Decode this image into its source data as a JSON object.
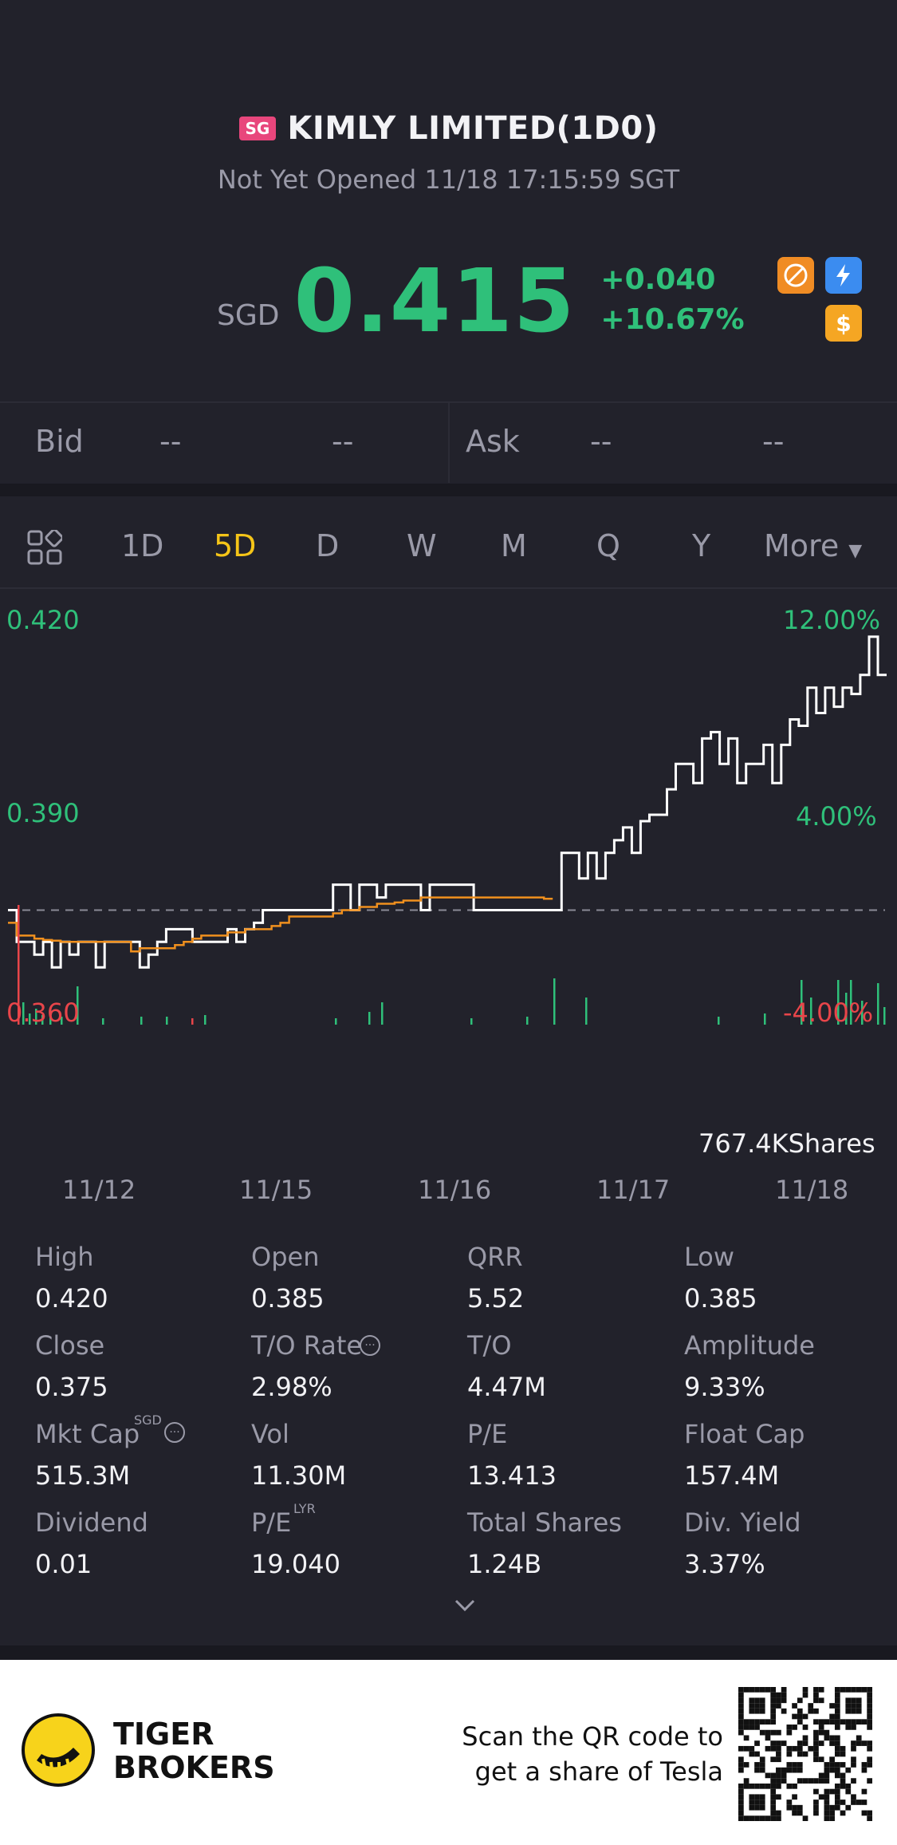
{
  "header": {
    "market_badge": "SG",
    "title": "KIMLY LIMITED(1D0)",
    "status": "Not Yet Opened 11/18 17:15:59 SGT"
  },
  "quote": {
    "currency": "SGD",
    "price": "0.415",
    "change": "+0.040",
    "change_pct": "+10.67%",
    "color_up": "#2fc07a"
  },
  "badges": {
    "no_short": "no-short-icon",
    "flash": "flash-icon",
    "dollar": "$"
  },
  "bidask": {
    "bid_label": "Bid",
    "bid_price": "--",
    "bid_size": "--",
    "ask_label": "Ask",
    "ask_price": "--",
    "ask_size": "--"
  },
  "tabs": {
    "items": [
      "1D",
      "5D",
      "D",
      "W",
      "M",
      "Q",
      "Y",
      "More"
    ],
    "active": "5D"
  },
  "chart_data": {
    "type": "line",
    "y_left": [
      "0.420",
      "0.390",
      "0.360"
    ],
    "y_right": [
      "12.00%",
      "4.00%",
      "-4.00%"
    ],
    "x_labels": [
      "11/12",
      "11/15",
      "11/16",
      "11/17",
      "11/18"
    ],
    "prev_close": 0.375,
    "ylim": [
      0.36,
      0.42
    ],
    "volume_label": "767.4KShares",
    "series": [
      {
        "color": "#ffffff",
        "values": [
          0.375,
          0.37,
          0.37,
          0.368,
          0.37,
          0.366,
          0.37,
          0.368,
          0.37,
          0.37,
          0.366,
          0.37,
          0.37,
          0.37,
          0.37,
          0.366,
          0.368,
          0.37,
          0.372,
          0.372,
          0.372,
          0.37,
          0.37,
          0.37,
          0.37,
          0.372,
          0.37,
          0.372,
          0.373,
          0.375,
          0.375,
          0.375,
          0.375,
          0.375,
          0.375,
          0.375,
          0.375,
          0.379,
          0.379,
          0.375,
          0.379,
          0.379,
          0.377,
          0.379,
          0.379,
          0.379,
          0.379,
          0.375,
          0.379,
          0.379,
          0.379,
          0.379,
          0.379,
          0.375,
          0.375,
          0.375,
          0.375,
          0.375,
          0.375,
          0.375,
          0.375,
          0.375,
          0.375,
          0.384,
          0.384,
          0.38,
          0.384,
          0.38,
          0.384,
          0.386,
          0.388,
          0.384,
          0.389,
          0.39,
          0.39,
          0.394,
          0.398,
          0.398,
          0.395,
          0.402,
          0.403,
          0.398,
          0.402,
          0.395,
          0.398,
          0.398,
          0.401,
          0.395,
          0.401,
          0.405,
          0.404,
          0.41,
          0.406,
          0.41,
          0.407,
          0.41,
          0.409,
          0.412,
          0.418,
          0.412,
          0.412
        ]
      },
      {
        "color": "#f0901e",
        "values": [
          0.373,
          0.371,
          0.371,
          0.3705,
          0.3703,
          0.3702,
          0.37,
          0.37,
          0.37,
          0.37,
          0.37,
          0.37,
          0.37,
          0.37,
          0.3685,
          0.369,
          0.369,
          0.369,
          0.369,
          0.3695,
          0.37,
          0.3705,
          0.371,
          0.371,
          0.371,
          0.3715,
          0.3715,
          0.372,
          0.372,
          0.372,
          0.3725,
          0.373,
          0.374,
          0.374,
          0.374,
          0.374,
          0.374,
          0.3745,
          0.375,
          0.375,
          0.3755,
          0.3755,
          0.376,
          0.376,
          0.3762,
          0.3765,
          0.3765,
          0.377,
          0.377,
          0.377,
          0.377,
          0.377,
          0.377,
          0.377,
          0.377,
          0.377,
          0.377,
          0.377,
          0.377,
          0.377,
          0.377,
          0.3768,
          0.3768,
          null,
          null,
          null,
          null,
          null,
          null,
          null,
          null,
          null,
          null,
          null,
          null,
          null,
          null,
          null,
          null,
          null,
          null,
          null,
          null,
          null,
          null,
          null,
          null,
          null,
          null,
          null,
          null,
          null,
          null,
          null,
          null,
          null,
          null,
          null,
          null,
          null,
          null
        ]
      }
    ]
  },
  "stats": [
    {
      "label": "High",
      "value": "0.420"
    },
    {
      "label": "Open",
      "value": "0.385"
    },
    {
      "label": "QRR",
      "value": "5.52"
    },
    {
      "label": "Low",
      "value": "0.385"
    },
    {
      "label": "Close",
      "value": "0.375"
    },
    {
      "label": "T/O Rate",
      "value": "2.98%"
    },
    {
      "label": "T/O",
      "value": "4.47M"
    },
    {
      "label": "Amplitude",
      "value": "9.33%"
    },
    {
      "label": "Mkt Cap",
      "value": "515.3M"
    },
    {
      "label": "Vol",
      "value": "11.30M"
    },
    {
      "label": "P/E",
      "value": "13.413"
    },
    {
      "label": "Float Cap",
      "value": "157.4M"
    },
    {
      "label": "Dividend",
      "value": "0.01"
    },
    {
      "label": "P/E",
      "value": "19.040"
    },
    {
      "label": "Total Shares",
      "value": "1.24B"
    },
    {
      "label": "Div. Yield",
      "value": "3.37%"
    }
  ],
  "stat_supers": {
    "mkt_cap": "SGD",
    "pe_lyr": "LYR"
  },
  "footer": {
    "brand_line1": "TIGER",
    "brand_line2": "BROKERS",
    "promo_line1": "Scan the QR code to",
    "promo_line2": "get a share of Tesla"
  }
}
